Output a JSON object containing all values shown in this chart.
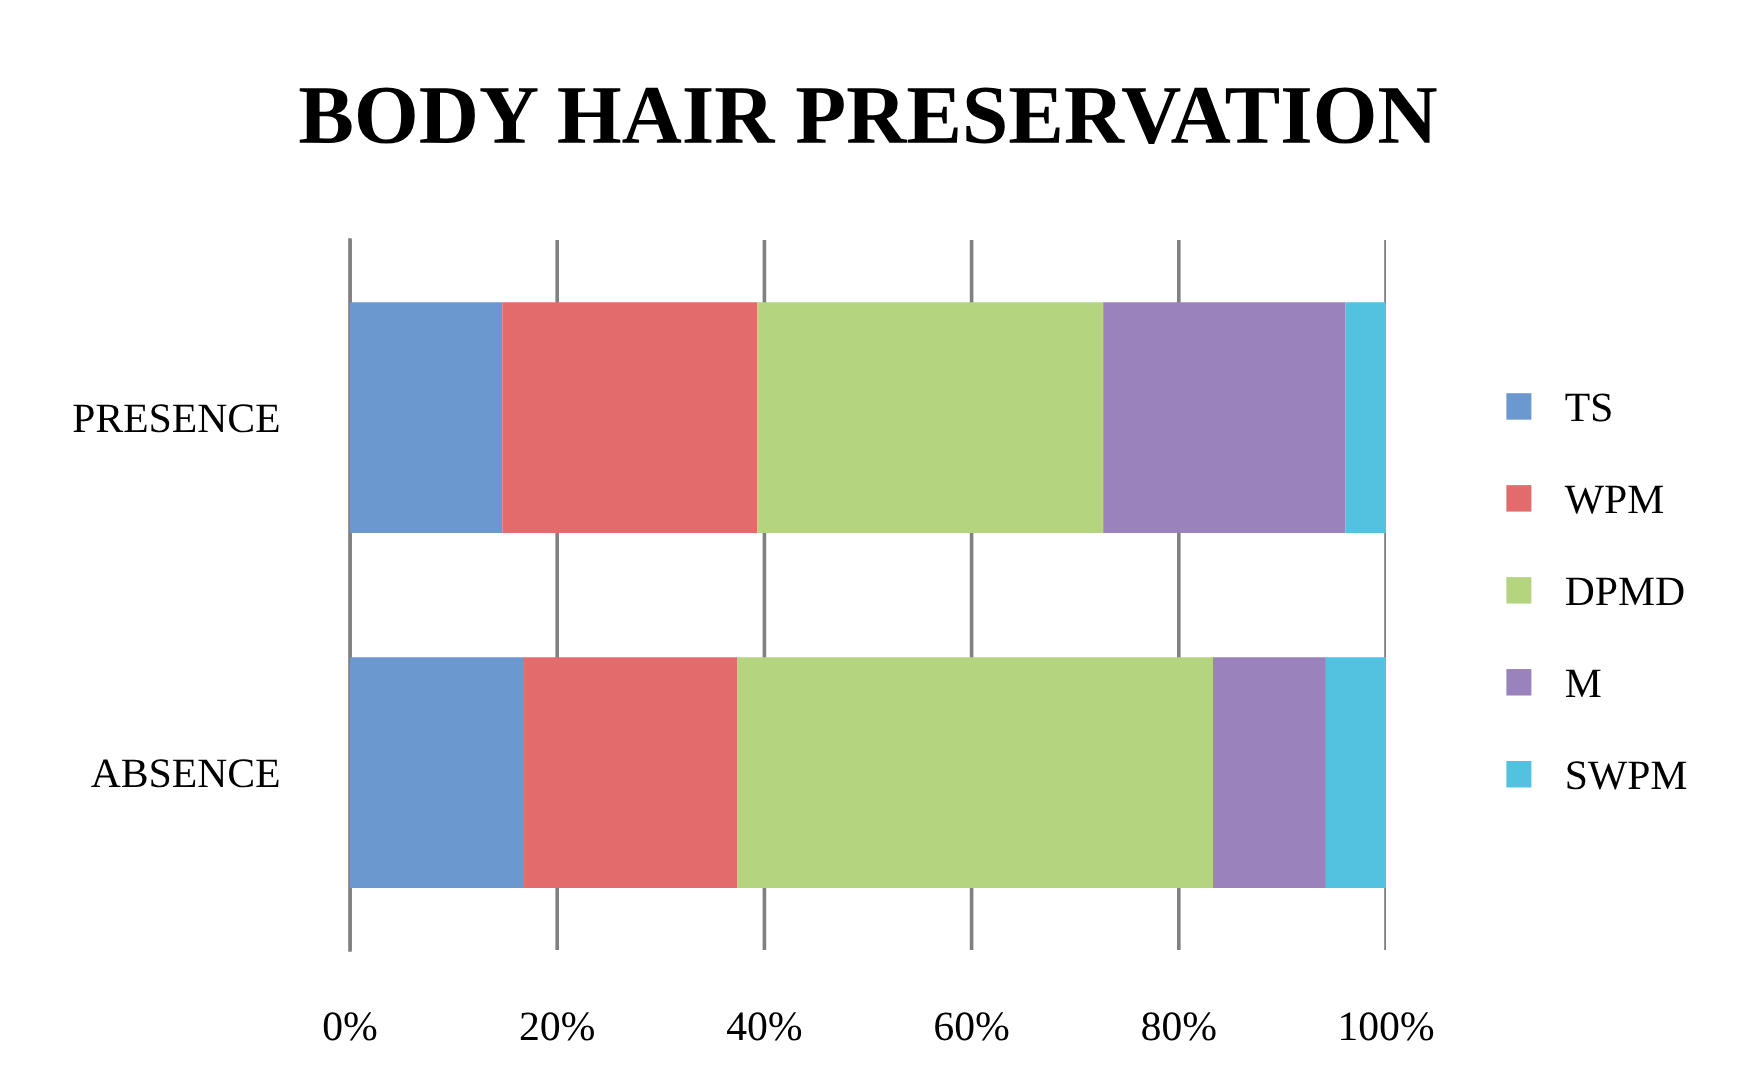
{
  "chart_data": {
    "type": "bar",
    "orientation": "horizontal",
    "stacked": true,
    "title": "BODY HAIR PRESERVATION",
    "categories": [
      "PRESENCE",
      "ABSENCE"
    ],
    "series": [
      {
        "name": "TS",
        "color": "#6a98cf",
        "values": [
          14.7,
          16.8
        ]
      },
      {
        "name": "WPM",
        "color": "#e36b6b",
        "values": [
          24.6,
          20.6
        ]
      },
      {
        "name": "DPMD",
        "color": "#b4d47f",
        "values": [
          33.4,
          45.9
        ]
      },
      {
        "name": "M",
        "color": "#9a83bd",
        "values": [
          23.4,
          10.9
        ]
      },
      {
        "name": "SWPM",
        "color": "#52c2e0",
        "values": [
          3.9,
          5.8
        ]
      }
    ],
    "xlim": [
      0,
      100
    ],
    "xticks": [
      {
        "value": 0,
        "label": "0%"
      },
      {
        "value": 20,
        "label": "20%"
      },
      {
        "value": 40,
        "label": "40%"
      },
      {
        "value": 60,
        "label": "60%"
      },
      {
        "value": 80,
        "label": "80%"
      },
      {
        "value": 100,
        "label": "100%"
      }
    ],
    "grid": "x",
    "legend": "right"
  }
}
